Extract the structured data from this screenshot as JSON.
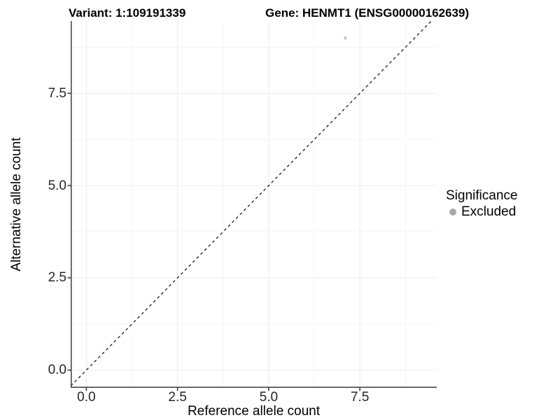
{
  "titles": {
    "variant": "Variant: 1:109191339",
    "gene": "Gene: HENMT1 (ENSG00000162639)"
  },
  "legend": {
    "title": "Significance",
    "items": [
      {
        "label": "Excluded",
        "key_color": "#a9a9a9"
      }
    ]
  },
  "chart_data": {
    "type": "scatter",
    "title": "Variant: 1:109191339 | Gene: HENMT1 (ENSG00000162639)",
    "xlabel": "Reference allele count",
    "ylabel": "Alternative allele count",
    "xlim": [
      -0.43,
      9.61
    ],
    "ylim": [
      -0.48,
      9.46
    ],
    "x_major_ticks": [
      0.0,
      2.5,
      5.0,
      7.5
    ],
    "x_tick_labels": [
      "0.0",
      "2.5",
      "5.0",
      "7.5"
    ],
    "x_minor_ticks": [
      1.25,
      3.75,
      6.25,
      8.75
    ],
    "y_major_ticks": [
      0.0,
      2.5,
      5.0,
      7.5
    ],
    "y_tick_labels": [
      "0.0",
      "2.5",
      "5.0",
      "7.5"
    ],
    "y_minor_ticks": [
      1.25,
      3.75,
      6.25,
      8.75
    ],
    "grid": true,
    "legend_position": "right",
    "series": [
      {
        "name": "Excluded",
        "color": "#c6c6c6",
        "points": [
          {
            "x": 7.1,
            "y": 9.0
          }
        ]
      }
    ],
    "abline": {
      "intercept": 0,
      "slope": 1,
      "linetype": "dashed",
      "color": "#1a1a1a"
    },
    "style": {
      "grid_major_color": "#ececec",
      "grid_minor_color": "#f5f5f5",
      "axis_line_color": "#3c3c3c",
      "tick_color": "#333333",
      "point_radius": 2.3,
      "legend_key_radius": 5
    }
  }
}
